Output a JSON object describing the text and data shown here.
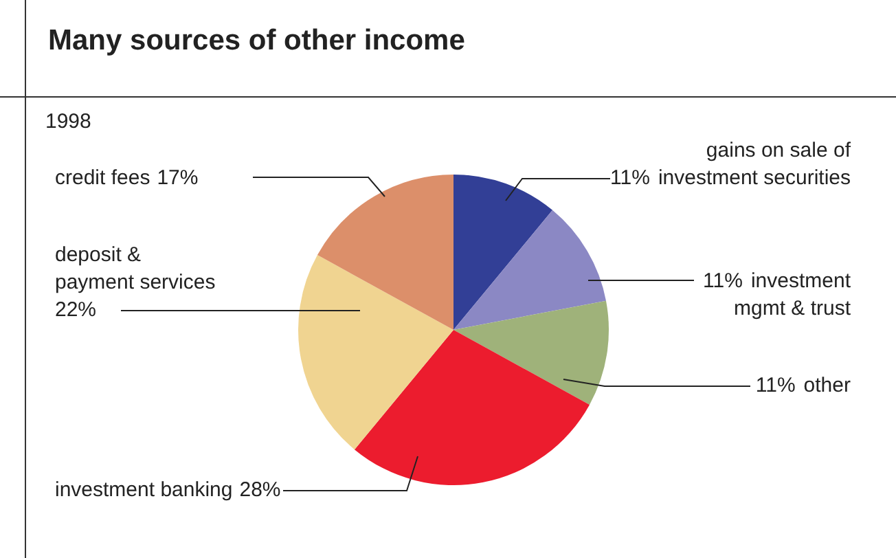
{
  "chart_data": {
    "type": "pie",
    "title": "Many sources of other income",
    "subtitle": "1998",
    "categories": [
      "gains on sale of\ninvestment securities",
      "investment\nmgmt & trust",
      "other",
      "investment banking",
      "deposit &\npayment services",
      "credit fees"
    ],
    "values": [
      11,
      11,
      11,
      28,
      22,
      17
    ],
    "colors": [
      "#323f96",
      "#8b88c4",
      "#9fb27a",
      "#ec1c2e",
      "#f0d491",
      "#dc8f6a"
    ],
    "value_labels": [
      "11%",
      "11%",
      "11%",
      "28%",
      "22%",
      "17%"
    ],
    "legend": false
  }
}
